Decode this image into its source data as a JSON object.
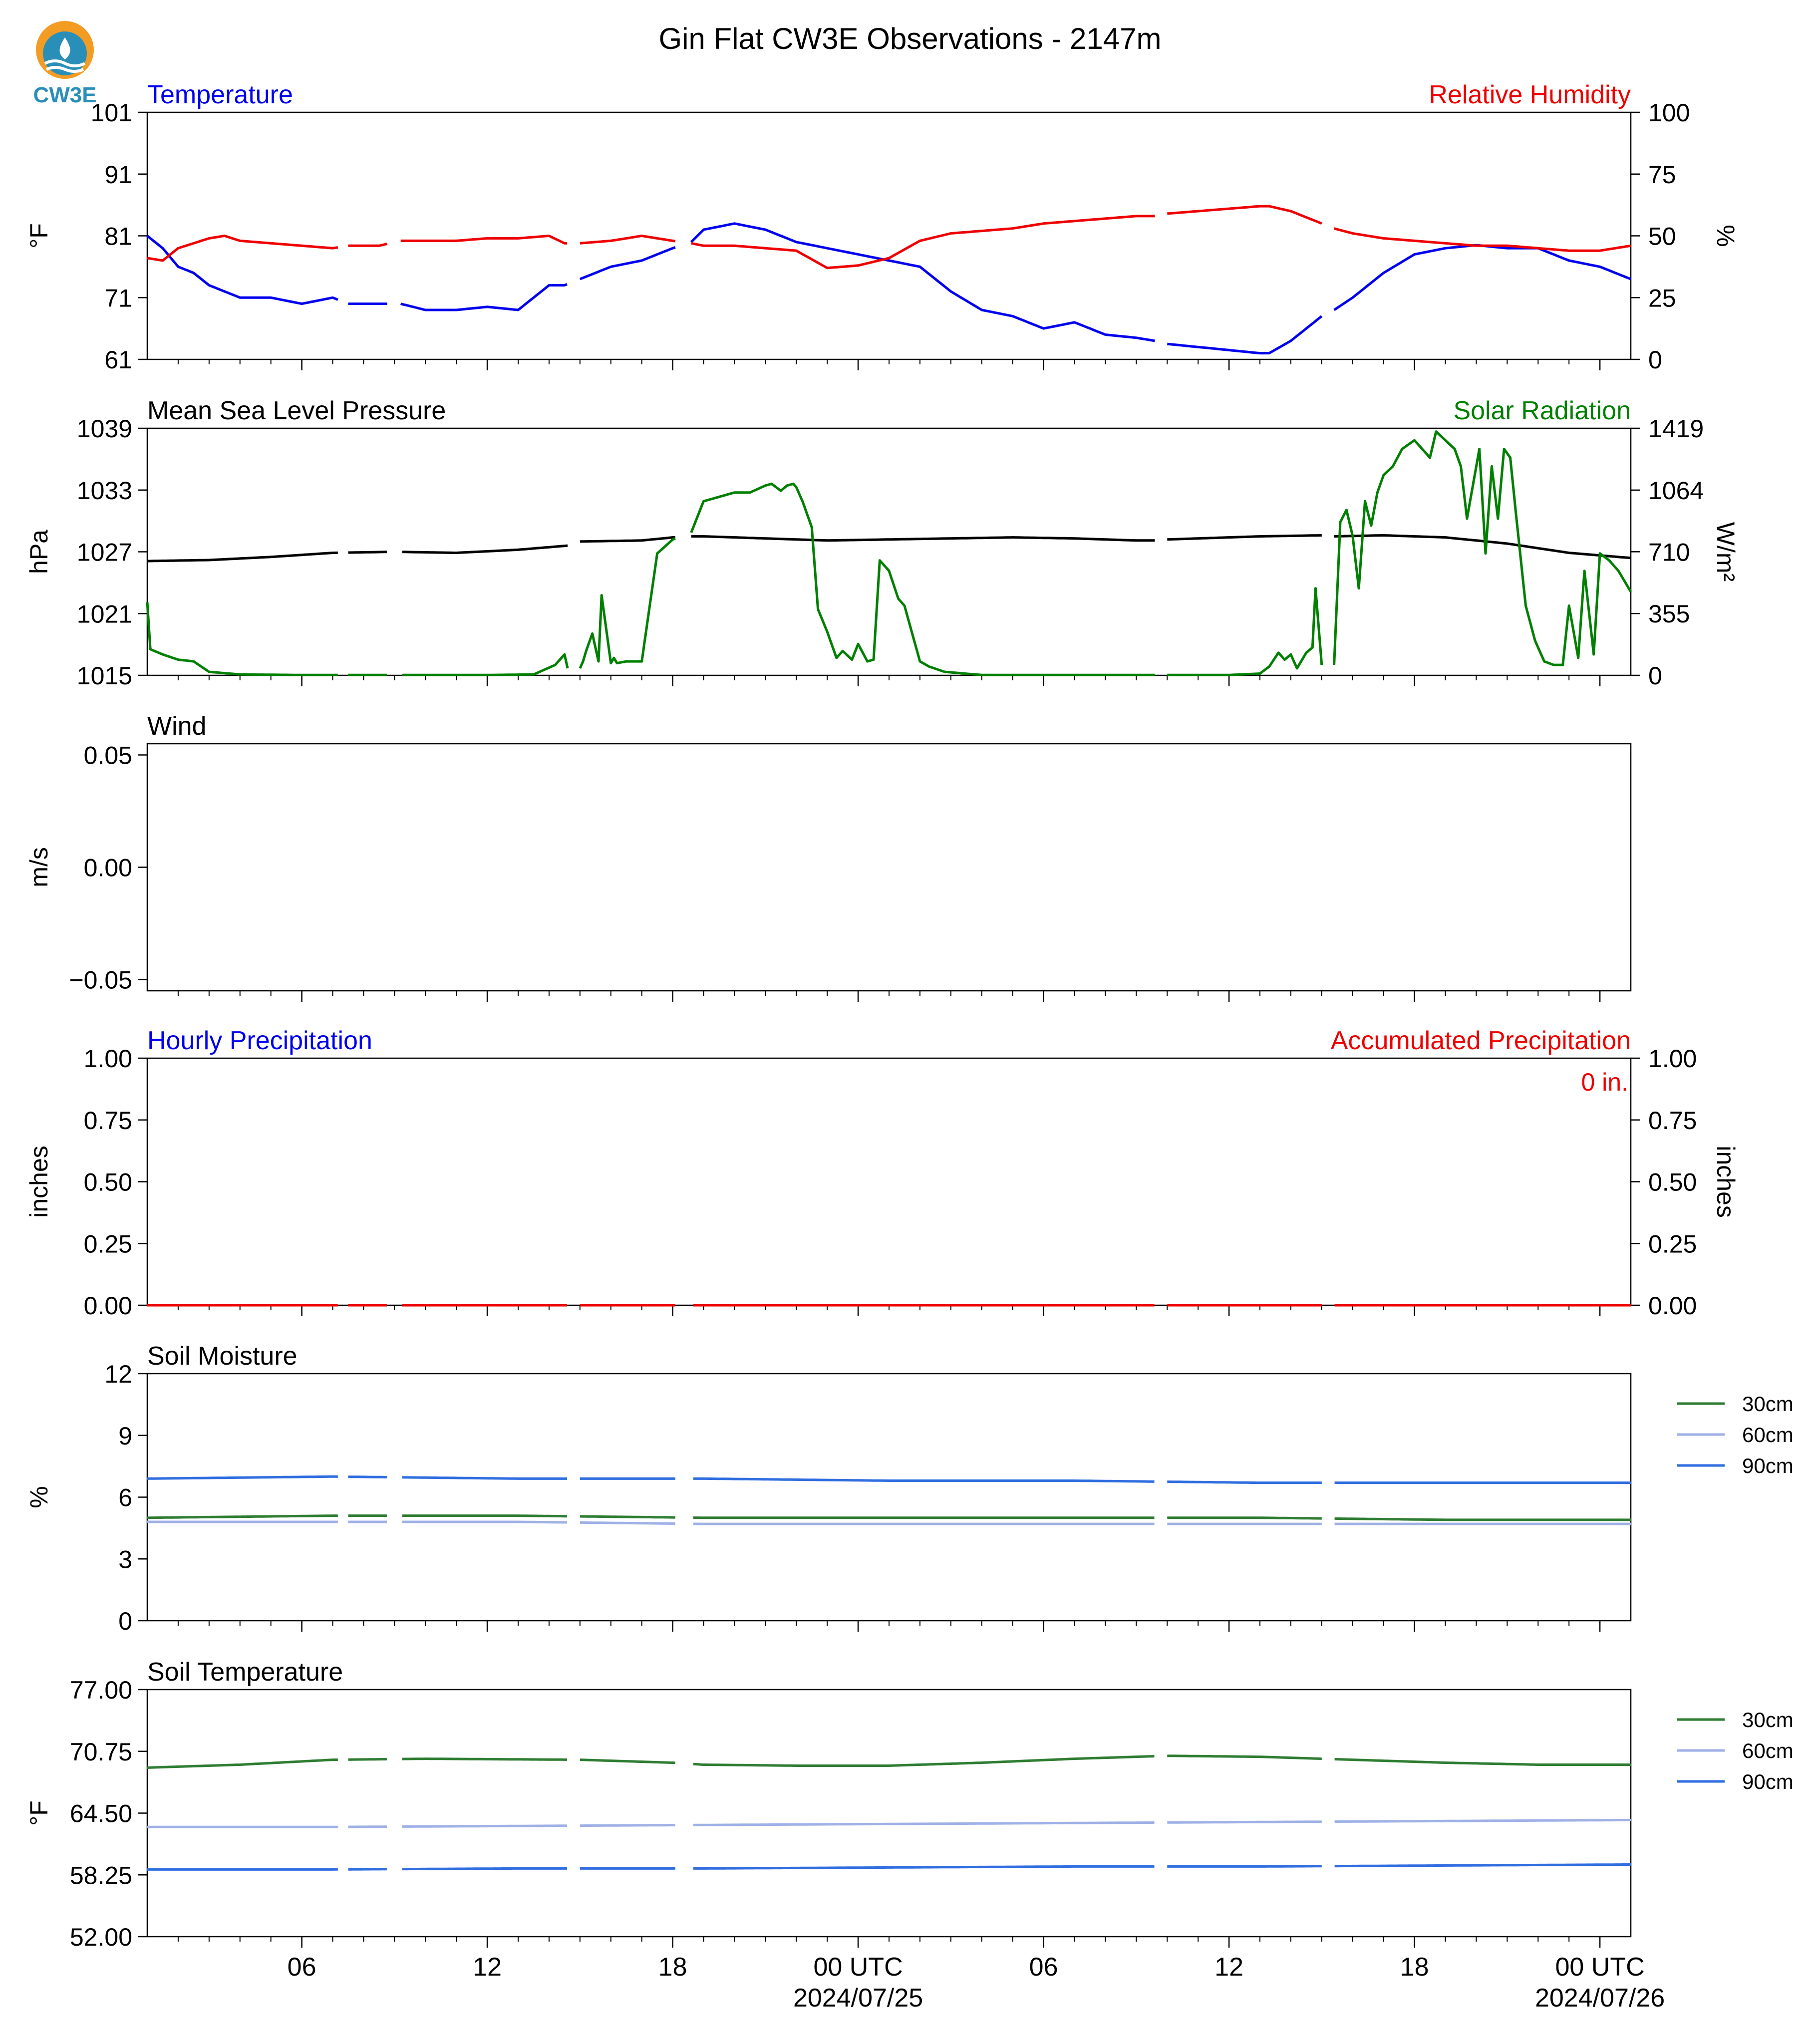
{
  "page": {
    "title": "Gin Flat CW3E Observations - 2147m",
    "logo_text": "CW3E"
  },
  "colors": {
    "blue": "#0000ee",
    "red": "#ee0000",
    "green": "#008000",
    "black": "#000000",
    "soil_30": "#2e7d32",
    "soil_60": "#9fb0e6",
    "soil_90": "#2f6de0",
    "logo_orange": "#f39c24",
    "logo_teal": "#2a8fb8"
  },
  "time_axis": {
    "start_hour": 0,
    "end_hour": 48,
    "major_ticks": [
      {
        "hour": 5,
        "label": "06",
        "sublabel": ""
      },
      {
        "hour": 11,
        "label": "12",
        "sublabel": ""
      },
      {
        "hour": 17,
        "label": "18",
        "sublabel": ""
      },
      {
        "hour": 23,
        "label": "00 UTC",
        "sublabel": "2024/07/25"
      },
      {
        "hour": 29,
        "label": "06",
        "sublabel": ""
      },
      {
        "hour": 35,
        "label": "12",
        "sublabel": ""
      },
      {
        "hour": 41,
        "label": "18",
        "sublabel": ""
      },
      {
        "hour": 47,
        "label": "00 UTC",
        "sublabel": "2024/07/26"
      }
    ],
    "gaps": [
      [
        6.2,
        6.5
      ],
      [
        7.8,
        8.2
      ],
      [
        13.6,
        14.0
      ],
      [
        17.1,
        17.6
      ],
      [
        32.6,
        33.0
      ],
      [
        38.0,
        38.4
      ]
    ]
  },
  "chart_data": [
    {
      "id": "temp_rh",
      "type": "line",
      "left_title": "Temperature",
      "right_title": "Relative Humidity",
      "left_ylabel": "°F",
      "right_ylabel": "%",
      "left_ylim": [
        61,
        101
      ],
      "right_ylim": [
        0,
        100
      ],
      "left_ticks": [
        "101",
        "91",
        "81",
        "71",
        "61"
      ],
      "right_ticks": [
        "100",
        "75",
        "50",
        "25",
        "0"
      ],
      "series": [
        {
          "name": "Temperature",
          "axis": "left",
          "color_key": "blue",
          "x": [
            0,
            0.5,
            1,
            1.5,
            2,
            2.5,
            3,
            4,
            5,
            6,
            6.5,
            7.5,
            8.2,
            9,
            10,
            11,
            12,
            13,
            13.5,
            14,
            15,
            16,
            17,
            17.6,
            18,
            19,
            20,
            21,
            22,
            23,
            24,
            25,
            26,
            27,
            28,
            29,
            30,
            31,
            32,
            32.6,
            33,
            34,
            35,
            36,
            36.3,
            37,
            38,
            38.4,
            39,
            40,
            41,
            42,
            43,
            44,
            45,
            46,
            47,
            48
          ],
          "y": [
            81,
            79,
            76,
            75,
            73,
            72,
            71,
            71,
            70,
            71,
            70,
            70,
            70,
            69,
            69,
            69.5,
            69,
            73,
            73,
            74,
            76,
            77,
            79,
            80,
            82,
            83,
            82,
            80,
            79,
            78,
            77,
            76,
            72,
            69,
            68,
            66,
            67,
            65,
            64.5,
            64,
            63.5,
            63,
            62.5,
            62,
            62,
            64,
            68,
            69,
            71,
            75,
            78,
            79,
            79.5,
            79,
            79,
            77,
            76,
            74
          ]
        },
        {
          "name": "Relative Humidity",
          "axis": "right",
          "color_key": "red",
          "x": [
            0,
            0.5,
            1,
            1.5,
            2,
            2.5,
            3,
            4,
            5,
            6,
            6.5,
            7.5,
            8.2,
            9,
            10,
            11,
            12,
            13,
            13.5,
            14,
            15,
            16,
            17,
            17.6,
            18,
            19,
            20,
            21,
            22,
            23,
            24,
            25,
            26,
            27,
            28,
            29,
            30,
            31,
            32,
            32.6,
            33,
            34,
            35,
            36,
            36.3,
            37,
            38,
            38.4,
            39,
            40,
            41,
            42,
            43,
            44,
            45,
            46,
            47,
            48
          ],
          "y": [
            41,
            40,
            45,
            47,
            49,
            50,
            48,
            47,
            46,
            45,
            46,
            46,
            48,
            48,
            48,
            49,
            49,
            50,
            47,
            47,
            48,
            50,
            48,
            47,
            46,
            46,
            45,
            44,
            37,
            38,
            41,
            48,
            51,
            52,
            53,
            55,
            56,
            57,
            58,
            58,
            59,
            60,
            61,
            62,
            62,
            60,
            55,
            53,
            51,
            49,
            48,
            47,
            46,
            46,
            45,
            44,
            44,
            46
          ]
        }
      ]
    },
    {
      "id": "pressure_solar",
      "type": "line",
      "left_title": "Mean Sea Level Pressure",
      "right_title": "Solar Radiation",
      "left_ylabel": "hPa",
      "right_ylabel": "W/m²",
      "left_ylim": [
        1015,
        1039
      ],
      "right_ylim": [
        0,
        1419
      ],
      "left_ticks": [
        "1039",
        "1033",
        "1027",
        "1021",
        "1015"
      ],
      "right_ticks": [
        "1419",
        "1064",
        "710",
        "355",
        "0"
      ],
      "series": [
        {
          "name": "Mean Sea Level Pressure",
          "axis": "left",
          "color_key": "black",
          "x": [
            0,
            2,
            4,
            6,
            8,
            10,
            12,
            13.6,
            14,
            16,
            17,
            17.6,
            18,
            20,
            22,
            24,
            26,
            28,
            30,
            32,
            32.6,
            33,
            35,
            36,
            38,
            38.4,
            40,
            42,
            44,
            46,
            48
          ],
          "y": [
            1026.1,
            1026.2,
            1026.5,
            1026.9,
            1027,
            1026.9,
            1027.2,
            1027.6,
            1028,
            1028.1,
            1028.4,
            1028.5,
            1028.5,
            1028.3,
            1028.1,
            1028.2,
            1028.3,
            1028.4,
            1028.3,
            1028.1,
            1028.1,
            1028.2,
            1028.4,
            1028.5,
            1028.6,
            1028.5,
            1028.6,
            1028.4,
            1027.8,
            1026.9,
            1026.4
          ]
        },
        {
          "name": "Solar Radiation",
          "axis": "right",
          "color_key": "green",
          "x": [
            0,
            0.1,
            0.5,
            1.0,
            1.5,
            2,
            3,
            5,
            7,
            9,
            11,
            12.5,
            13.2,
            13.5,
            13.6,
            14,
            14.1,
            14.2,
            14.4,
            14.6,
            14.7,
            15.0,
            15.1,
            15.2,
            15.5,
            16.0,
            16.5,
            17.0,
            17.6,
            18.0,
            18.4,
            19.0,
            19.5,
            20.0,
            20.2,
            20.5,
            20.7,
            20.9,
            21.0,
            21.2,
            21.5,
            21.7,
            22.0,
            22.3,
            22.5,
            22.8,
            23.0,
            23.3,
            23.5,
            23.7,
            24.0,
            24.3,
            24.5,
            25.0,
            25.3,
            25.8,
            27,
            29,
            31,
            32.6,
            33,
            35,
            36.0,
            36.3,
            36.6,
            36.8,
            37.0,
            37.2,
            37.5,
            37.7,
            37.8,
            38.0,
            38.4,
            38.6,
            38.8,
            39.0,
            39.2,
            39.4,
            39.6,
            39.8,
            40.0,
            40.3,
            40.6,
            41.0,
            41.5,
            41.7,
            42.0,
            42.3,
            42.5,
            42.7,
            42.9,
            43.1,
            43.3,
            43.5,
            43.7,
            43.9,
            44.1,
            44.3,
            44.6,
            44.9,
            45.2,
            45.5,
            45.8,
            46.0,
            46.3,
            46.5,
            46.8,
            47.0,
            47.3,
            47.6,
            48.0
          ],
          "y": [
            420,
            150,
            120,
            90,
            80,
            20,
            5,
            2,
            2,
            2,
            2,
            5,
            60,
            120,
            40,
            40,
            80,
            140,
            240,
            80,
            460,
            70,
            100,
            70,
            80,
            80,
            700,
            780,
            820,
            1000,
            1020,
            1050,
            1050,
            1090,
            1100,
            1060,
            1090,
            1100,
            1080,
            1000,
            850,
            380,
            250,
            100,
            140,
            90,
            180,
            80,
            90,
            660,
            600,
            440,
            400,
            80,
            50,
            20,
            2,
            2,
            2,
            2,
            2,
            2,
            10,
            50,
            130,
            90,
            120,
            40,
            130,
            160,
            500,
            60,
            60,
            880,
            950,
            800,
            500,
            1000,
            860,
            1050,
            1150,
            1200,
            1300,
            1350,
            1250,
            1400,
            1350,
            1300,
            1200,
            900,
            1100,
            1300,
            700,
            1200,
            900,
            1300,
            1250,
            900,
            400,
            200,
            80,
            60,
            60,
            400,
            100,
            600,
            120,
            700,
            660,
            600,
            480
          ]
        }
      ]
    },
    {
      "id": "wind",
      "type": "line",
      "left_title": "Wind",
      "right_title": "",
      "left_ylabel": "m/s",
      "right_ylabel": "",
      "left_ylim": [
        -0.055,
        0.055
      ],
      "right_ylim": null,
      "left_ticks": [
        "0.05",
        "0.00",
        "−0.05"
      ],
      "right_ticks": [],
      "series": []
    },
    {
      "id": "precip",
      "type": "line",
      "left_title": "Hourly Precipitation",
      "right_title": "Accumulated Precipitation",
      "left_ylabel": "inches",
      "right_ylabel": "inches",
      "left_ylim": [
        0,
        1
      ],
      "right_ylim": [
        0,
        1
      ],
      "left_ticks": [
        "1.00",
        "0.75",
        "0.50",
        "0.25",
        "0.00"
      ],
      "right_ticks": [
        "1.00",
        "0.75",
        "0.50",
        "0.25",
        "0.00"
      ],
      "annotation": "0 in.",
      "series": [
        {
          "name": "Accumulated Precipitation",
          "axis": "left",
          "color_key": "red",
          "x": [
            0,
            48
          ],
          "y": [
            0,
            0
          ]
        }
      ]
    },
    {
      "id": "soil_moisture",
      "type": "line",
      "left_title": "Soil Moisture",
      "right_title": "",
      "left_ylabel": "%",
      "right_ylabel": "",
      "left_ylim": [
        0,
        12
      ],
      "right_ylim": null,
      "left_ticks": [
        "12",
        "9",
        "6",
        "3",
        "0"
      ],
      "right_ticks": [],
      "legend": [
        "30cm",
        "60cm",
        "90cm"
      ],
      "series": [
        {
          "name": "30cm",
          "axis": "left",
          "color_key": "soil_30",
          "x": [
            0,
            6,
            12,
            18,
            24,
            30,
            36,
            42,
            48
          ],
          "y": [
            5.0,
            5.1,
            5.1,
            5.0,
            5.0,
            5.0,
            5.0,
            4.9,
            4.9
          ]
        },
        {
          "name": "60cm",
          "axis": "left",
          "color_key": "soil_60",
          "x": [
            0,
            6,
            12,
            18,
            24,
            30,
            36,
            42,
            48
          ],
          "y": [
            4.8,
            4.8,
            4.8,
            4.7,
            4.7,
            4.7,
            4.7,
            4.7,
            4.7
          ]
        },
        {
          "name": "90cm",
          "axis": "left",
          "color_key": "soil_90",
          "x": [
            0,
            6,
            12,
            18,
            24,
            30,
            36,
            42,
            48
          ],
          "y": [
            6.9,
            7.0,
            6.9,
            6.9,
            6.8,
            6.8,
            6.7,
            6.7,
            6.7
          ]
        }
      ]
    },
    {
      "id": "soil_temp",
      "type": "line",
      "left_title": "Soil Temperature",
      "right_title": "",
      "left_ylabel": "°F",
      "right_ylabel": "",
      "left_ylim": [
        52,
        77
      ],
      "right_ylim": null,
      "left_ticks": [
        "77.00",
        "70.75",
        "64.50",
        "58.25",
        "52.00"
      ],
      "right_ticks": [],
      "legend": [
        "30cm",
        "60cm",
        "90cm"
      ],
      "series": [
        {
          "name": "30cm",
          "axis": "left",
          "color_key": "soil_30",
          "x": [
            0,
            3,
            6,
            9,
            14,
            17,
            18,
            21,
            24,
            27,
            30,
            33,
            36,
            39,
            42,
            45,
            48
          ],
          "y": [
            69.1,
            69.4,
            69.9,
            70.0,
            69.9,
            69.6,
            69.4,
            69.3,
            69.3,
            69.6,
            70.0,
            70.3,
            70.2,
            69.9,
            69.6,
            69.4,
            69.4
          ]
        },
        {
          "name": "60cm",
          "axis": "left",
          "color_key": "soil_60",
          "x": [
            0,
            6,
            12,
            18,
            24,
            30,
            36,
            42,
            48
          ],
          "y": [
            63.1,
            63.1,
            63.2,
            63.3,
            63.4,
            63.5,
            63.6,
            63.7,
            63.8
          ]
        },
        {
          "name": "90cm",
          "axis": "left",
          "color_key": "soil_90",
          "x": [
            0,
            6,
            12,
            18,
            24,
            30,
            36,
            42,
            48
          ],
          "y": [
            58.8,
            58.8,
            58.9,
            58.9,
            59.0,
            59.1,
            59.1,
            59.2,
            59.3
          ]
        }
      ]
    }
  ]
}
